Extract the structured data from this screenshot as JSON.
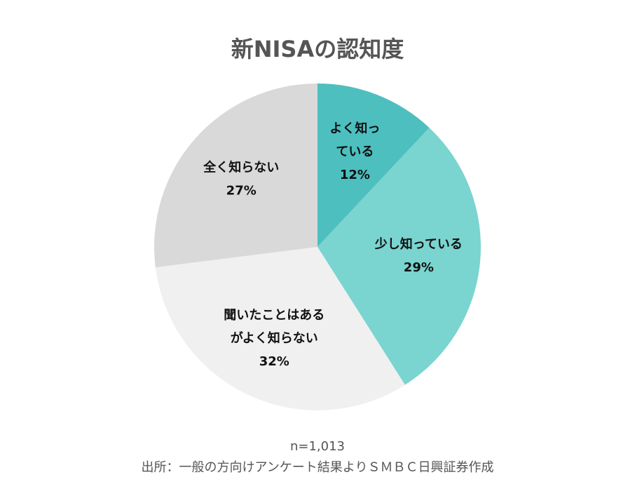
{
  "chart_data": {
    "type": "pie",
    "title": "新NISAの認知度",
    "categories": [
      [
        "よく知っ",
        "ている"
      ],
      [
        "少し知っている"
      ],
      [
        "聞いたことはある",
        "がよく知らない"
      ],
      [
        "全く知らない"
      ]
    ],
    "values": [
      12,
      29,
      32,
      27
    ],
    "value_labels": [
      "12%",
      "29%",
      "32%",
      "27%"
    ],
    "colors": [
      "#4dbfbf",
      "#7ad4d0",
      "#f0f0f0",
      "#d9d9d9"
    ],
    "sample_note": "n=1,013",
    "source": "出所：一般の方向けアンケート結果よりＳＭＢＣ日興証券作成"
  }
}
